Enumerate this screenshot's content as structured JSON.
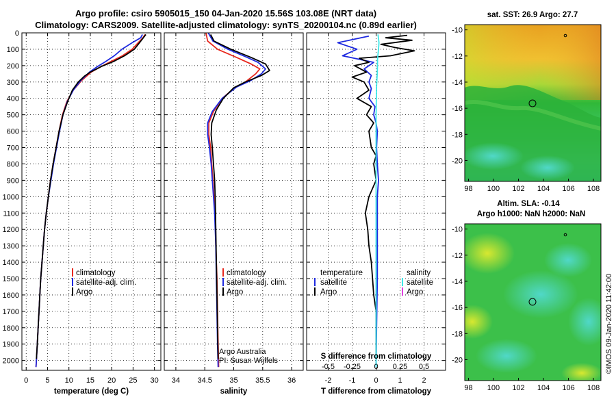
{
  "header": {
    "title_line1": "Argo profile: csiro 5905015_150 04-Jan-2020 15.56S 103.08E (NRT data)",
    "title_line2": "Climatology: CARS2009. Satellite-adjusted climatology: synTS_20200104.nc (0.89d earlier)"
  },
  "colors": {
    "climatology": "#e8281e",
    "satellite": "#1e2ae0",
    "argo": "#000000",
    "salinity_satellite": "#40e8e8",
    "salinity_argo": "#e040e0"
  },
  "chart_data": [
    {
      "type": "line",
      "panel": "temperature",
      "xlabel": "temperature (deg C)",
      "xlim": [
        -1,
        31.5
      ],
      "xticks": [
        0,
        5,
        10,
        15,
        20,
        25,
        30
      ],
      "ylim": [
        2060,
        0
      ],
      "yticks": [
        0,
        100,
        200,
        300,
        400,
        500,
        600,
        700,
        800,
        900,
        1000,
        1100,
        1200,
        1300,
        1400,
        1500,
        1600,
        1700,
        1800,
        1900,
        2000
      ],
      "grid": true,
      "legend": [
        "climatology",
        "satellite-adj. clim.",
        "Argo"
      ],
      "series": [
        {
          "name": "climatology",
          "points": [
            [
              27.8,
              10
            ],
            [
              27.3,
              30
            ],
            [
              26.2,
              60
            ],
            [
              24.8,
              100
            ],
            [
              22.5,
              140
            ],
            [
              19.8,
              175
            ],
            [
              17.2,
              210
            ],
            [
              15.2,
              240
            ],
            [
              13.0,
              290
            ],
            [
              11.0,
              350
            ],
            [
              9.5,
              420
            ],
            [
              8.5,
              500
            ],
            [
              7.7,
              600
            ],
            [
              7.0,
              700
            ],
            [
              6.3,
              800
            ],
            [
              5.7,
              900
            ],
            [
              5.2,
              1000
            ],
            [
              4.7,
              1100
            ],
            [
              4.3,
              1200
            ],
            [
              4.0,
              1300
            ],
            [
              3.7,
              1400
            ],
            [
              3.4,
              1500
            ],
            [
              3.2,
              1600
            ],
            [
              3.0,
              1700
            ],
            [
              2.8,
              1800
            ],
            [
              2.6,
              1900
            ],
            [
              2.4,
              2000
            ],
            [
              2.3,
              2040
            ]
          ]
        },
        {
          "name": "satellite-adj. clim.",
          "points": [
            [
              27.2,
              10
            ],
            [
              26.8,
              30
            ],
            [
              24.8,
              60
            ],
            [
              22.4,
              100
            ],
            [
              20.6,
              140
            ],
            [
              18.6,
              175
            ],
            [
              16.4,
              210
            ],
            [
              14.8,
              240
            ],
            [
              12.8,
              290
            ],
            [
              11.0,
              350
            ],
            [
              9.6,
              420
            ],
            [
              8.6,
              500
            ],
            [
              7.8,
              600
            ],
            [
              7.1,
              700
            ],
            [
              6.4,
              800
            ],
            [
              5.8,
              900
            ],
            [
              5.2,
              1000
            ],
            [
              4.7,
              1100
            ],
            [
              4.3,
              1200
            ],
            [
              4.0,
              1300
            ],
            [
              3.7,
              1400
            ],
            [
              3.4,
              1500
            ],
            [
              3.2,
              1600
            ],
            [
              3.0,
              1700
            ],
            [
              2.8,
              1800
            ],
            [
              2.6,
              1900
            ],
            [
              2.4,
              2000
            ],
            [
              2.3,
              2040
            ]
          ]
        },
        {
          "name": "Argo",
          "points": [
            [
              28.0,
              10
            ],
            [
              27.4,
              30
            ],
            [
              26.5,
              60
            ],
            [
              25.3,
              100
            ],
            [
              23.0,
              140
            ],
            [
              20.4,
              175
            ],
            [
              17.6,
              205
            ],
            [
              15.0,
              240
            ],
            [
              13.6,
              265
            ],
            [
              12.2,
              300
            ],
            [
              10.8,
              350
            ],
            [
              9.7,
              420
            ],
            [
              8.6,
              500
            ],
            [
              7.7,
              600
            ],
            [
              7.0,
              700
            ],
            [
              6.3,
              800
            ],
            [
              5.7,
              900
            ],
            [
              5.2,
              1000
            ],
            [
              4.7,
              1100
            ],
            [
              4.3,
              1200
            ],
            [
              4.0,
              1300
            ],
            [
              3.7,
              1400
            ],
            [
              3.4,
              1500
            ],
            [
              3.2,
              1600
            ],
            [
              3.0,
              1700
            ],
            [
              2.8,
              1800
            ],
            [
              2.6,
              1900
            ],
            [
              2.4,
              1990
            ]
          ]
        }
      ]
    },
    {
      "type": "line",
      "panel": "salinity",
      "xlabel": "salinity",
      "xlim": [
        33.8,
        36.2
      ],
      "xticks": [
        34,
        34.5,
        35,
        35.5,
        36
      ],
      "ylim": [
        2060,
        0
      ],
      "grid": true,
      "legend": [
        "climatology",
        "satellite-adj. clim.",
        "Argo"
      ],
      "notes": [
        "Argo Australia",
        "PI: Susan Wijffels"
      ],
      "series": [
        {
          "name": "climatology",
          "points": [
            [
              34.52,
              0
            ],
            [
              34.55,
              50
            ],
            [
              34.72,
              100
            ],
            [
              35.05,
              150
            ],
            [
              35.3,
              190
            ],
            [
              35.45,
              220
            ],
            [
              35.38,
              250
            ],
            [
              35.2,
              300
            ],
            [
              35.0,
              340
            ],
            [
              34.8,
              400
            ],
            [
              34.65,
              480
            ],
            [
              34.57,
              550
            ],
            [
              34.57,
              620
            ],
            [
              34.6,
              700
            ],
            [
              34.62,
              800
            ],
            [
              34.64,
              900
            ],
            [
              34.66,
              1000
            ],
            [
              34.68,
              1100
            ],
            [
              34.69,
              1300
            ],
            [
              34.71,
              1500
            ],
            [
              34.72,
              1700
            ],
            [
              34.73,
              1900
            ],
            [
              34.74,
              2040
            ]
          ]
        },
        {
          "name": "satellite-adj. clim.",
          "points": [
            [
              34.56,
              0
            ],
            [
              34.64,
              50
            ],
            [
              34.9,
              100
            ],
            [
              35.2,
              145
            ],
            [
              35.42,
              180
            ],
            [
              35.55,
              220
            ],
            [
              35.48,
              250
            ],
            [
              35.3,
              290
            ],
            [
              35.05,
              330
            ],
            [
              34.8,
              400
            ],
            [
              34.63,
              480
            ],
            [
              34.55,
              550
            ],
            [
              34.55,
              620
            ],
            [
              34.58,
              700
            ],
            [
              34.61,
              800
            ],
            [
              34.63,
              900
            ],
            [
              34.65,
              1000
            ],
            [
              34.67,
              1100
            ],
            [
              34.69,
              1300
            ],
            [
              34.7,
              1500
            ],
            [
              34.71,
              1700
            ],
            [
              34.72,
              1900
            ],
            [
              34.73,
              2040
            ]
          ]
        },
        {
          "name": "Argo",
          "points": [
            [
              34.6,
              10
            ],
            [
              34.66,
              50
            ],
            [
              34.95,
              100
            ],
            [
              35.3,
              150
            ],
            [
              35.55,
              190
            ],
            [
              35.62,
              230
            ],
            [
              35.48,
              260
            ],
            [
              35.2,
              300
            ],
            [
              35.0,
              335
            ],
            [
              34.82,
              400
            ],
            [
              34.7,
              470
            ],
            [
              34.62,
              550
            ],
            [
              34.61,
              620
            ],
            [
              34.63,
              700
            ],
            [
              34.65,
              800
            ],
            [
              34.67,
              900
            ],
            [
              34.68,
              1000
            ],
            [
              34.69,
              1200
            ],
            [
              34.7,
              1400
            ],
            [
              34.71,
              1600
            ],
            [
              34.72,
              1800
            ],
            [
              34.73,
              1990
            ]
          ]
        }
      ]
    },
    {
      "type": "line",
      "panel": "differences",
      "xlabel": "T difference from climatology",
      "xlim": [
        -2.9,
        2.9
      ],
      "xticks": [
        -2,
        -1,
        0,
        1,
        2
      ],
      "top_label": "S difference from climatology",
      "top_ticks": [
        "-0.5",
        "-0.25",
        "0",
        "0.25",
        "0.5"
      ],
      "top_tick_values": [
        -0.5,
        -0.25,
        0,
        0.25,
        0.5
      ],
      "top_xlim": [
        -0.725,
        0.725
      ],
      "ylim": [
        2060,
        0
      ],
      "grid": true,
      "legend_left": {
        "heading": "temperature",
        "items": [
          "satellite",
          "Argo"
        ]
      },
      "legend_right": {
        "heading": "salinity",
        "items": [
          "satellite",
          "Argo"
        ]
      },
      "series": [
        {
          "name": "temperature satellite",
          "points": [
            [
              -0.3,
              20
            ],
            [
              -1.6,
              60
            ],
            [
              -0.8,
              100
            ],
            [
              -1.4,
              140
            ],
            [
              -0.1,
              180
            ],
            [
              -0.5,
              220
            ],
            [
              -0.2,
              260
            ],
            [
              -0.3,
              300
            ],
            [
              -0.2,
              340
            ],
            [
              -0.3,
              400
            ],
            [
              -0.05,
              450
            ],
            [
              -0.1,
              500
            ],
            [
              0.0,
              550
            ],
            [
              0.05,
              600
            ],
            [
              0.02,
              700
            ],
            [
              0.05,
              800
            ],
            [
              0.1,
              900
            ],
            [
              0.05,
              1000
            ],
            [
              0.05,
              1200
            ],
            [
              0.05,
              1500
            ],
            [
              0.02,
              1800
            ],
            [
              0.0,
              2040
            ]
          ]
        },
        {
          "name": "temperature Argo",
          "points": [
            [
              1.3,
              15
            ],
            [
              0.4,
              30
            ],
            [
              1.5,
              45
            ],
            [
              0.2,
              70
            ],
            [
              0.8,
              90
            ],
            [
              1.6,
              110
            ],
            [
              0.6,
              140
            ],
            [
              -0.7,
              155
            ],
            [
              -0.3,
              180
            ],
            [
              -0.9,
              200
            ],
            [
              -0.4,
              240
            ],
            [
              -1.0,
              270
            ],
            [
              -0.5,
              300
            ],
            [
              -0.3,
              350
            ],
            [
              -0.8,
              400
            ],
            [
              -0.2,
              450
            ],
            [
              -0.4,
              500
            ],
            [
              -0.1,
              550
            ],
            [
              -0.3,
              600
            ],
            [
              -0.2,
              700
            ],
            [
              0.0,
              750
            ],
            [
              -0.1,
              800
            ],
            [
              0.0,
              900
            ],
            [
              -0.3,
              1000
            ],
            [
              -0.45,
              1100
            ],
            [
              -0.35,
              1200
            ],
            [
              -0.3,
              1300
            ],
            [
              -0.2,
              1400
            ],
            [
              -0.15,
              1500
            ],
            [
              -0.1,
              1600
            ],
            [
              0.0,
              1700
            ],
            [
              0.0,
              1990
            ]
          ]
        },
        {
          "name": "salinity satellite",
          "points": [
            [
              0.08,
              10
            ],
            [
              0.12,
              60
            ],
            [
              0.1,
              100
            ],
            [
              0.06,
              160
            ],
            [
              0.05,
              240
            ],
            [
              0.02,
              320
            ],
            [
              0.01,
              400
            ],
            [
              0.0,
              500
            ],
            [
              0.0,
              1000
            ],
            [
              0.0,
              2040
            ]
          ]
        }
      ]
    }
  ],
  "maps": {
    "sst": {
      "title": "sat. SST: 26.9 Argo: 27.7",
      "xticks": [
        "98",
        "100",
        "102",
        "104",
        "106",
        "108"
      ],
      "yticks": [
        "-10",
        "-12",
        "-14",
        "-16",
        "-18",
        "-20"
      ]
    },
    "sla": {
      "title_line1": "Altim. SLA: -0.14",
      "title_line2": "Argo h1000: NaN h2000: NaN",
      "xticks": [
        "98",
        "100",
        "102",
        "104",
        "106",
        "108"
      ],
      "yticks": [
        "-10",
        "-12",
        "-14",
        "-16",
        "-18",
        "-20"
      ]
    }
  },
  "footer": {
    "credit": "©IMOS 09-Jan-2020 11:42:00"
  }
}
